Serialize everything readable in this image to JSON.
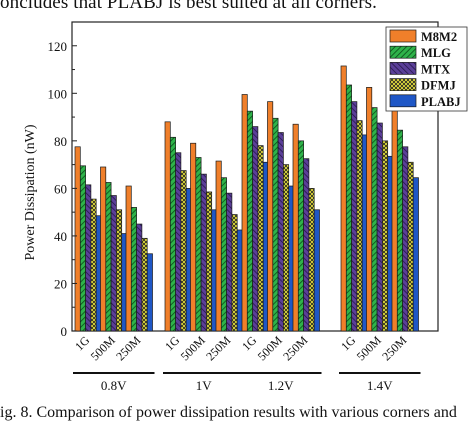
{
  "caption_top": "oncludes that PLABJ is best suited at all corners.",
  "caption_bottom": "ig. 8. Comparison of power dissipation results with various corners and",
  "colors": {
    "M8M2": "#f07f2a",
    "MLG": "#2fb34a",
    "MTX": "#5b3f98",
    "DFMJ": "#f2ec3d",
    "PLABJ": "#1f57c6"
  },
  "chart_data": {
    "type": "bar",
    "ylabel": "Power Dissipation (nW)",
    "ylim": [
      0,
      130
    ],
    "yticks": [
      0,
      20,
      40,
      60,
      80,
      100,
      120
    ],
    "legend_position": "top-right",
    "groups": [
      {
        "label": "0.8V",
        "frequencies": [
          "1G",
          "500M",
          "250M"
        ]
      },
      {
        "label": "1V",
        "frequencies": [
          "1G",
          "500M",
          "250M"
        ]
      },
      {
        "label": "1.2V",
        "frequencies": [
          "1G",
          "500M",
          "250M"
        ]
      },
      {
        "label": "1.4V",
        "frequencies": [
          "1G",
          "500M",
          "250M"
        ]
      }
    ],
    "series": [
      {
        "name": "M8M2",
        "pattern": "solid",
        "values": [
          77.5,
          69,
          61,
          88,
          79,
          71.5,
          99.5,
          96.5,
          87,
          111.5,
          102.5,
          95.5
        ]
      },
      {
        "name": "MLG",
        "pattern": "diagonal",
        "values": [
          69.5,
          62.5,
          52,
          81.5,
          73,
          64.5,
          92.5,
          89.5,
          80,
          103.5,
          94,
          84.5
        ]
      },
      {
        "name": "MTX",
        "pattern": "hatch",
        "values": [
          61.5,
          57,
          45,
          75,
          66,
          58,
          86,
          83.5,
          72.5,
          96.5,
          87.5,
          77.5
        ]
      },
      {
        "name": "DFMJ",
        "pattern": "crosshatch",
        "values": [
          55.5,
          51,
          39,
          67.5,
          58.5,
          49,
          78,
          70,
          60,
          88.5,
          80,
          71
        ]
      },
      {
        "name": "PLABJ",
        "pattern": "solid",
        "values": [
          48.5,
          41,
          32.5,
          60,
          51,
          42.5,
          71,
          61,
          51,
          82.5,
          73.5,
          64.5
        ]
      }
    ]
  }
}
